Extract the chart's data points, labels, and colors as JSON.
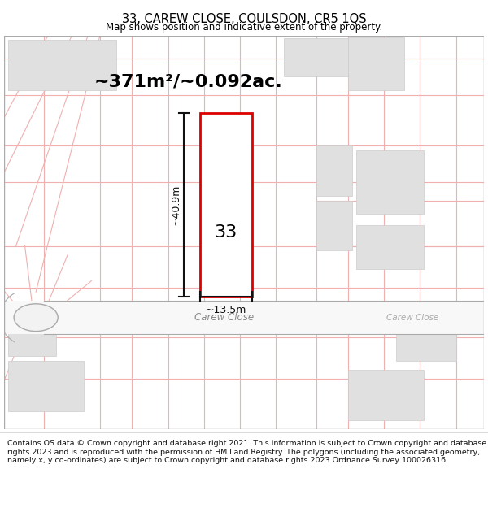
{
  "title": "33, CAREW CLOSE, COULSDON, CR5 1QS",
  "subtitle": "Map shows position and indicative extent of the property.",
  "area_text": "~371m²/~0.092ac.",
  "dim_height": "~40.9m",
  "dim_width": "~13.5m",
  "label_number": "33",
  "road_name": "Carew Close",
  "road_name2": "Carew Close",
  "footer": "Contains OS data © Crown copyright and database right 2021. This information is subject to Crown copyright and database rights 2023 and is reproduced with the permission of HM Land Registry. The polygons (including the associated geometry, namely x, y co-ordinates) are subject to Crown copyright and database rights 2023 Ordnance Survey 100026316.",
  "map_bg": "#ffffff",
  "plot_fill": "#ffffff",
  "plot_edge": "#dd0000",
  "road_fill": "#ffffff",
  "grid_color": "#f0b0b0",
  "block_fill": "#e0e0e0",
  "block_edge": "#cccccc"
}
